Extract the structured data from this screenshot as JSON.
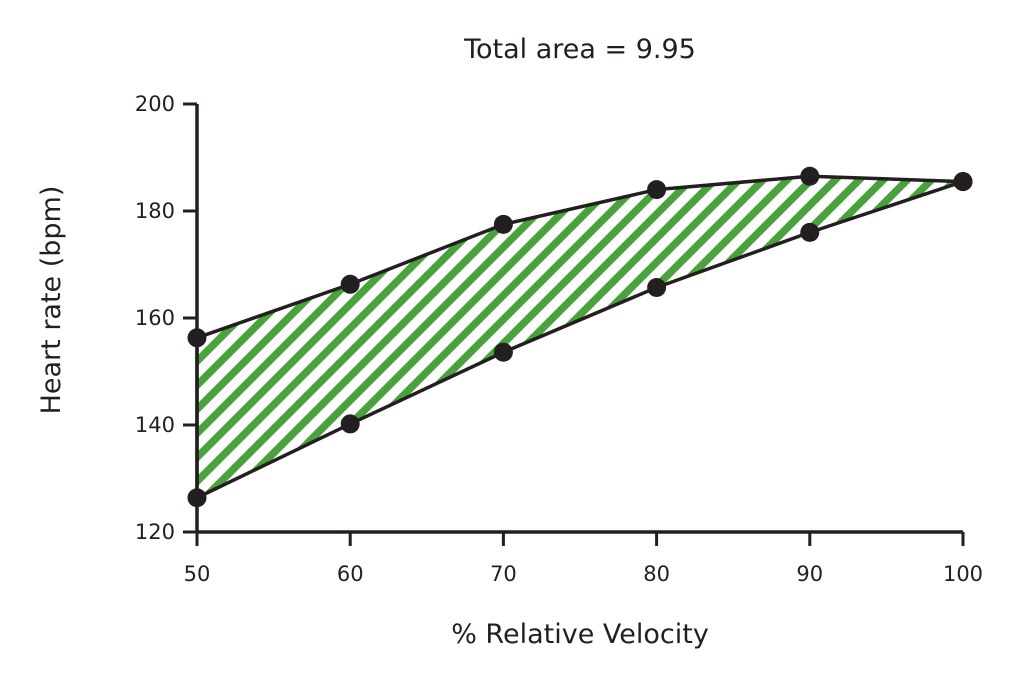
{
  "chart_data": {
    "type": "area",
    "title": "Total area = 9.95",
    "xlabel": "% Relative Velocity",
    "ylabel": "Heart rate (bpm)",
    "xlim": [
      50,
      100
    ],
    "ylim": [
      120,
      200
    ],
    "xticks": [
      50,
      60,
      70,
      80,
      90,
      100
    ],
    "yticks": [
      120,
      140,
      160,
      180,
      200
    ],
    "grid": false,
    "fill_color": "#4aa23c",
    "line_color": "#231f20",
    "series": [
      {
        "name": "upper",
        "x": [
          50,
          60,
          70,
          80,
          90,
          100
        ],
        "y": [
          156.3,
          166.3,
          177.5,
          184,
          186.5,
          185.5
        ]
      },
      {
        "name": "lower",
        "x": [
          50,
          60,
          70,
          80,
          90,
          100
        ],
        "y": [
          126.4,
          140.2,
          153.6,
          165.7,
          176,
          185.5
        ]
      }
    ]
  }
}
